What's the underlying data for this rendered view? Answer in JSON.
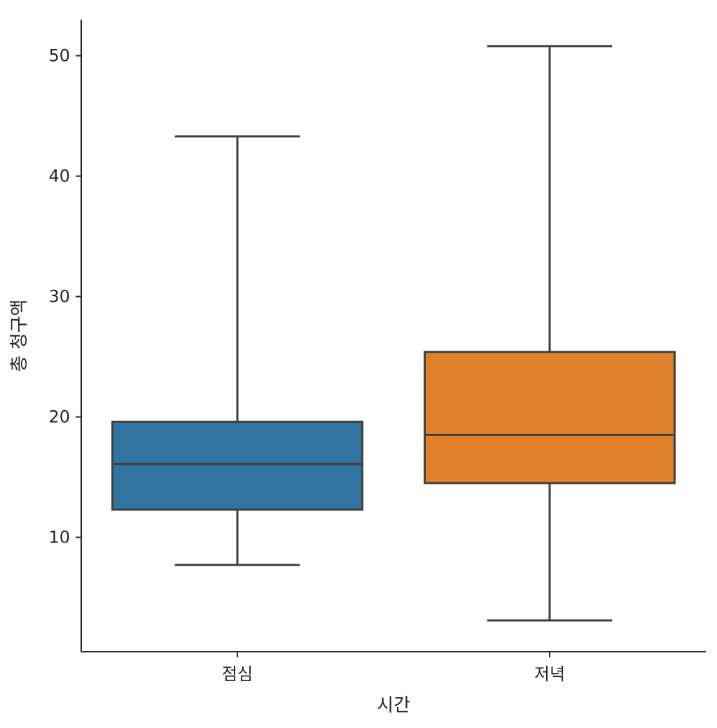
{
  "chart_data": {
    "type": "box",
    "title": "",
    "xlabel": "시간",
    "ylabel": "총 청구액",
    "ylim": [
      0.5,
      53
    ],
    "yticks": [
      10,
      20,
      30,
      40,
      50
    ],
    "ytick_labels": [
      "10",
      "20",
      "30",
      "40",
      "50"
    ],
    "categories": [
      "점심",
      "저녁"
    ],
    "boxes": [
      {
        "category": "점심",
        "min": 7.7,
        "q1": 12.3,
        "median": 16.1,
        "q3": 19.6,
        "max": 43.3,
        "color": "#3274a1"
      },
      {
        "category": "저녁",
        "min": 3.1,
        "q1": 14.5,
        "median": 18.5,
        "q3": 25.4,
        "max": 50.8,
        "color": "#e1812c"
      }
    ],
    "edge_color": "#3f3f3f",
    "grid": false,
    "legend": "none"
  }
}
